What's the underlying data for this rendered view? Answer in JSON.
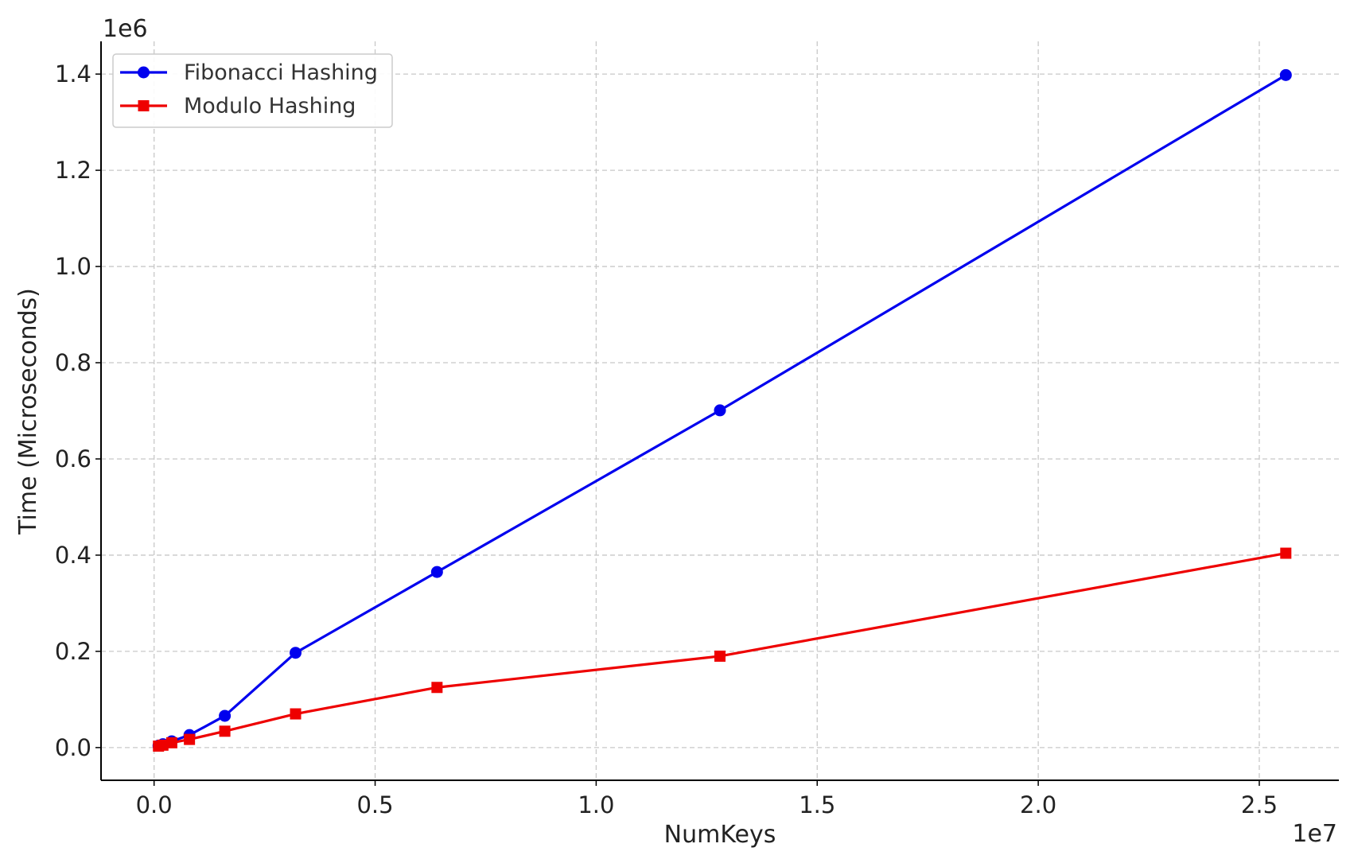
{
  "chart_data": {
    "type": "line",
    "xlabel": "NumKeys",
    "ylabel": "Time (Microseconds)",
    "x_offset_label": "1e7",
    "y_offset_label": "1e6",
    "x_scale": 10000000,
    "y_scale": 1000000,
    "xlim": [
      -0.12,
      2.68
    ],
    "ylim": [
      -0.068,
      1.468
    ],
    "x_ticks": [
      {
        "value": 0.0,
        "label": "0.0"
      },
      {
        "value": 0.5,
        "label": "0.5"
      },
      {
        "value": 1.0,
        "label": "1.0"
      },
      {
        "value": 1.5,
        "label": "1.5"
      },
      {
        "value": 2.0,
        "label": "2.0"
      },
      {
        "value": 2.5,
        "label": "2.5"
      }
    ],
    "y_ticks": [
      {
        "value": 0.0,
        "label": "0.0"
      },
      {
        "value": 0.2,
        "label": "0.2"
      },
      {
        "value": 0.4,
        "label": "0.4"
      },
      {
        "value": 0.6,
        "label": "0.6"
      },
      {
        "value": 0.8,
        "label": "0.8"
      },
      {
        "value": 1.0,
        "label": "1.0"
      },
      {
        "value": 1.2,
        "label": "1.2"
      },
      {
        "value": 1.4,
        "label": "1.4"
      }
    ],
    "grid": true,
    "legend_position": "top-left",
    "x": [
      100000,
      200000,
      400000,
      800000,
      1600000,
      3200000,
      6400000,
      12800000,
      25600000
    ],
    "series": [
      {
        "name": "Fibonacci Hashing",
        "color": "#0000ee",
        "marker": "circle",
        "values": [
          4000,
          7000,
          13000,
          26000,
          66000,
          197000,
          365000,
          701000,
          1398000
        ]
      },
      {
        "name": "Modulo Hashing",
        "color": "#ee0000",
        "marker": "square",
        "values": [
          3000,
          5000,
          10000,
          17000,
          34000,
          70000,
          125000,
          190000,
          404000
        ]
      }
    ]
  }
}
